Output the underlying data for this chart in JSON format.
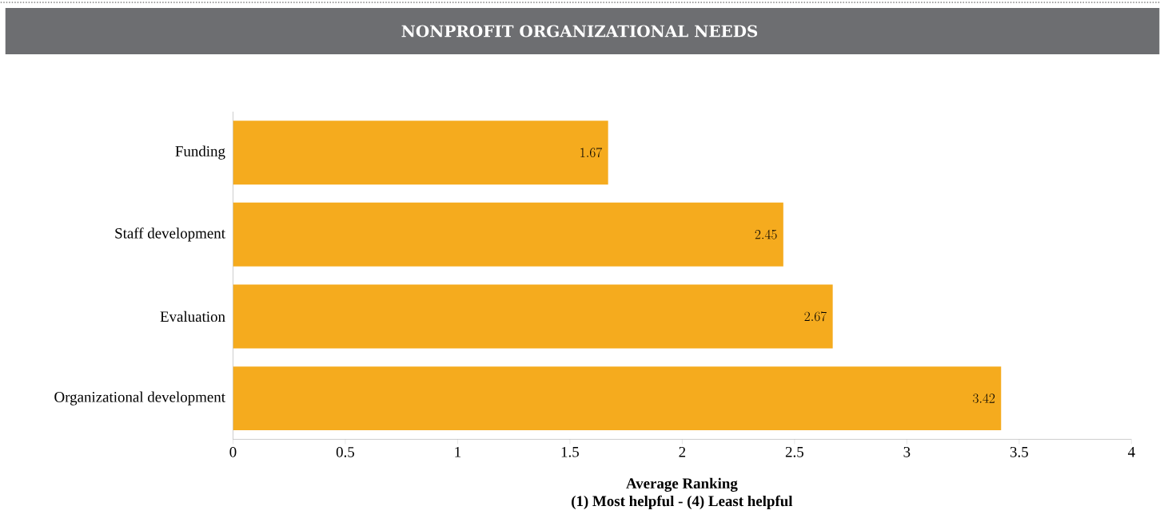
{
  "chart_data": {
    "type": "bar",
    "orientation": "horizontal",
    "title": "NONPROFIT ORGANIZATIONAL NEEDS",
    "categories": [
      "Funding",
      "Staff development",
      "Evaluation",
      "Organizational development"
    ],
    "values": [
      1.67,
      2.45,
      2.67,
      3.42
    ],
    "color": "#f5ab1e",
    "data_labels": true,
    "xlim": [
      0,
      4
    ],
    "xticks": [
      0,
      0.5,
      1,
      1.5,
      2,
      2.5,
      3,
      3.5,
      4
    ],
    "xlabel": "Average Ranking",
    "annotations": [
      "(1) Most helpful - (4) Least helpful"
    ]
  }
}
